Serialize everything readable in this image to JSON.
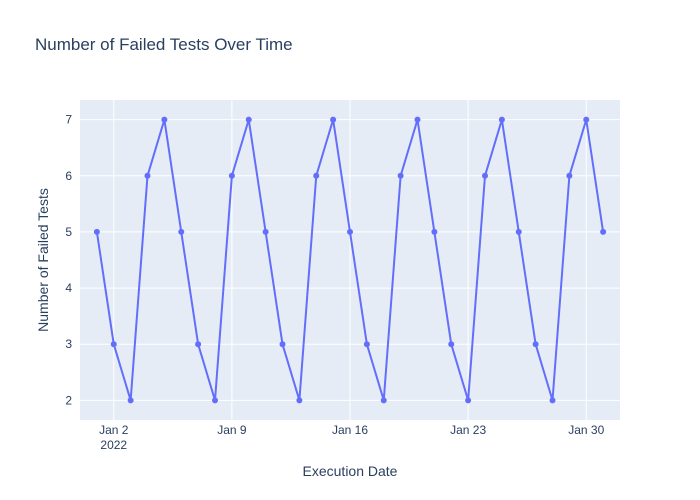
{
  "chart_data": {
    "type": "line",
    "title": "Number of Failed Tests Over Time",
    "xlabel": "Execution Date",
    "ylabel": "Number of Failed Tests",
    "x": [
      "2022-01-01",
      "2022-01-02",
      "2022-01-03",
      "2022-01-04",
      "2022-01-05",
      "2022-01-06",
      "2022-01-07",
      "2022-01-08",
      "2022-01-09",
      "2022-01-10",
      "2022-01-11",
      "2022-01-12",
      "2022-01-13",
      "2022-01-14",
      "2022-01-15",
      "2022-01-16",
      "2022-01-17",
      "2022-01-18",
      "2022-01-19",
      "2022-01-20",
      "2022-01-21",
      "2022-01-22",
      "2022-01-23",
      "2022-01-24",
      "2022-01-25",
      "2022-01-26",
      "2022-01-27",
      "2022-01-28",
      "2022-01-29",
      "2022-01-30",
      "2022-01-31"
    ],
    "series": [
      {
        "values": [
          5,
          3,
          2,
          6,
          7,
          5,
          3,
          2,
          6,
          7,
          5,
          3,
          2,
          6,
          7,
          5,
          3,
          2,
          6,
          7,
          5,
          3,
          2,
          6,
          7,
          5,
          3,
          2,
          6,
          7,
          5
        ],
        "color": "#636efa"
      }
    ],
    "x_ticks": [
      {
        "date": "2022-01-02",
        "label": "Jan 2",
        "sublabel": "2022"
      },
      {
        "date": "2022-01-09",
        "label": "Jan 9",
        "sublabel": ""
      },
      {
        "date": "2022-01-16",
        "label": "Jan 16",
        "sublabel": ""
      },
      {
        "date": "2022-01-23",
        "label": "Jan 23",
        "sublabel": ""
      },
      {
        "date": "2022-01-30",
        "label": "Jan 30",
        "sublabel": ""
      }
    ],
    "y_ticks": [
      2,
      3,
      4,
      5,
      6,
      7
    ],
    "xlim": [
      "2021-12-31",
      "2022-02-01"
    ],
    "ylim": [
      1.65,
      7.35
    ],
    "grid": true,
    "plot_background": "#e5ecf6",
    "text_color": "#2a3f5f"
  }
}
